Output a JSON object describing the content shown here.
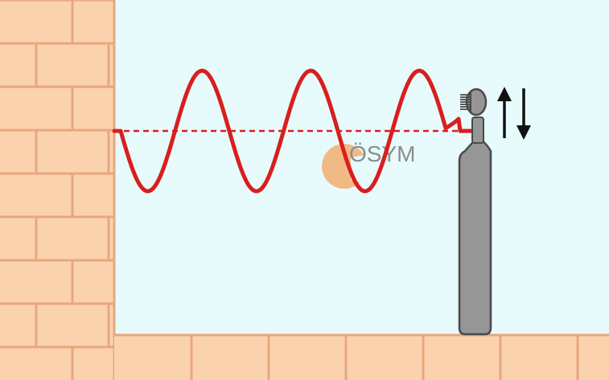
{
  "watermark": {
    "text": "ÖSYM"
  },
  "colors": {
    "sky": "#e8fbfc",
    "brick_fill": "#fad3ae",
    "brick_mortar": "#e9a67d",
    "wave": "#d91e1e",
    "equilibrium_line": "#d91e1e",
    "vibrator_body": "#969696",
    "vibrator_outline": "#4a4a4a",
    "arrow": "#111111",
    "logo_circle": "#f2b27a",
    "watermark_text": "#8c8c8c"
  },
  "icons": {
    "vibrator": "electric-vibrator-device",
    "motion_arrows": "up-down-arrows-icon",
    "logo": "osym-logo-icon"
  }
}
